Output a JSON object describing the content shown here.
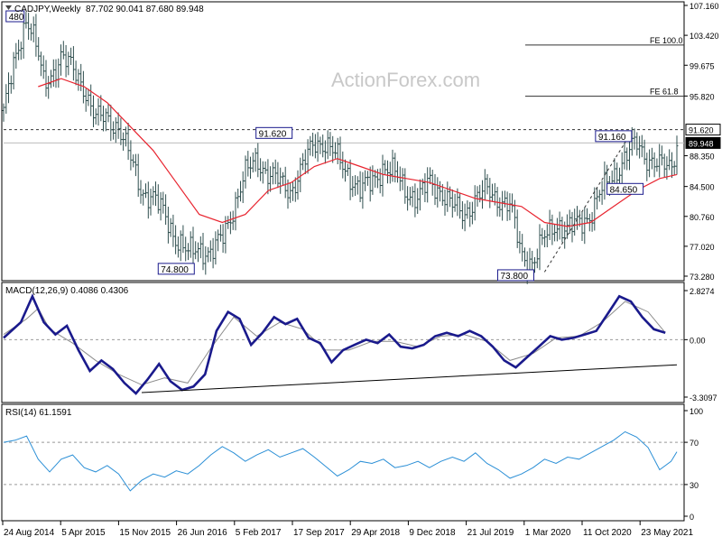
{
  "header": {
    "symbol_label": "CADJPY,Weekly",
    "ohlc_label": "87.702 90.041 87.680 89.948"
  },
  "watermark": "ActionForex.com",
  "colors": {
    "bars": "#2f4f4f",
    "ma": "#e8242f",
    "macd": "#1a1a8c",
    "signal": "#8c8c8c",
    "rsi": "#2b8fd6",
    "grid": "#e6e6e6"
  },
  "chart_data": [
    {
      "type": "candlestick",
      "title": "CADJPY,Weekly",
      "ylim": [
        73.28,
        107.16
      ],
      "y_ticks": [
        "107.160",
        "103.420",
        "99.675",
        "95.820",
        "91.620",
        "89.948",
        "88.350",
        "84.500",
        "80.760",
        "77.020",
        "73.280"
      ],
      "annotations": [
        "480",
        "74.800",
        "91.620",
        "73.800",
        "91.160",
        "84.650"
      ],
      "fib_levels": [
        {
          "label": "FE 100.0",
          "value": 102.2
        },
        {
          "label": "FE 61.8",
          "value": 95.8
        }
      ],
      "highlighted_levels": [
        {
          "label": "91.620",
          "value": 91.62
        },
        {
          "label": "89.948",
          "value": 89.948
        }
      ],
      "series": [
        {
          "points": [
            [
              0,
              94
            ],
            [
              2,
              100
            ],
            [
              4,
              106
            ],
            [
              5,
              104
            ],
            [
              6,
              101
            ],
            [
              7,
              97
            ],
            [
              8,
              98
            ],
            [
              10,
              101
            ],
            [
              12,
              99
            ],
            [
              14,
              97
            ],
            [
              16,
              93
            ],
            [
              18,
              93
            ],
            [
              20,
              92
            ],
            [
              22,
              88
            ],
            [
              24,
              84
            ],
            [
              26,
              83
            ],
            [
              28,
              81
            ],
            [
              30,
              78
            ],
            [
              32,
              76
            ],
            [
              34,
              77
            ],
            [
              36,
              76
            ],
            [
              38,
              78
            ],
            [
              40,
              82
            ],
            [
              42,
              86
            ],
            [
              44,
              88
            ],
            [
              46,
              86
            ],
            [
              48,
              85
            ],
            [
              50,
              84
            ],
            [
              52,
              87
            ],
            [
              54,
              90
            ],
            [
              56,
              90
            ],
            [
              58,
              88
            ],
            [
              60,
              86
            ],
            [
              62,
              84
            ],
            [
              64,
              85
            ],
            [
              66,
              87
            ],
            [
              68,
              86
            ],
            [
              70,
              84
            ],
            [
              72,
              83
            ],
            [
              74,
              85
            ],
            [
              76,
              84
            ],
            [
              78,
              82
            ],
            [
              80,
              81
            ],
            [
              82,
              83
            ],
            [
              84,
              84
            ],
            [
              86,
              83
            ],
            [
              88,
              82
            ],
            [
              90,
              76
            ],
            [
              92,
              75
            ],
            [
              94,
              78
            ],
            [
              96,
              80
            ],
            [
              98,
              79
            ],
            [
              100,
              80
            ],
            [
              102,
              81
            ],
            [
              104,
              84
            ],
            [
              106,
              86
            ],
            [
              108,
              88
            ],
            [
              110,
              90
            ],
            [
              112,
              88
            ],
            [
              114,
              87
            ],
            [
              116,
              87
            ],
            [
              117,
              89.9
            ]
          ]
        },
        {
          "name": "SMA",
          "points": [
            [
              6,
              97
            ],
            [
              10,
              98
            ],
            [
              14,
              97
            ],
            [
              18,
              95
            ],
            [
              22,
              92
            ],
            [
              26,
              89
            ],
            [
              30,
              85
            ],
            [
              34,
              81
            ],
            [
              38,
              80
            ],
            [
              42,
              81
            ],
            [
              46,
              84
            ],
            [
              50,
              85
            ],
            [
              54,
              87
            ],
            [
              58,
              88
            ],
            [
              62,
              87
            ],
            [
              66,
              86
            ],
            [
              70,
              85.5
            ],
            [
              74,
              85
            ],
            [
              78,
              84
            ],
            [
              82,
              83
            ],
            [
              86,
              82.5
            ],
            [
              90,
              82
            ],
            [
              94,
              80
            ],
            [
              98,
              79.5
            ],
            [
              102,
              80
            ],
            [
              106,
              82
            ],
            [
              110,
              84
            ],
            [
              114,
              85.5
            ],
            [
              117,
              86
            ]
          ]
        }
      ]
    },
    {
      "type": "line",
      "title": "MACD(12,26,9) 0.4086 0.4306",
      "ylim": [
        -3.3097,
        2.8274
      ],
      "y_ticks": [
        "2.8274",
        "0.00",
        "-3.3097"
      ],
      "series": [
        {
          "name": "MACD",
          "points": [
            [
              0,
              0.1
            ],
            [
              3,
              1.0
            ],
            [
              5,
              2.5
            ],
            [
              7,
              1.0
            ],
            [
              9,
              0.3
            ],
            [
              11,
              0.8
            ],
            [
              13,
              -0.6
            ],
            [
              15,
              -1.8
            ],
            [
              17,
              -1.2
            ],
            [
              19,
              -1.7
            ],
            [
              21,
              -2.5
            ],
            [
              23,
              -3.1
            ],
            [
              25,
              -2.3
            ],
            [
              27,
              -1.4
            ],
            [
              29,
              -2.4
            ],
            [
              31,
              -2.9
            ],
            [
              33,
              -2.7
            ],
            [
              35,
              -2.0
            ],
            [
              37,
              0.5
            ],
            [
              39,
              1.6
            ],
            [
              41,
              1.2
            ],
            [
              43,
              -0.3
            ],
            [
              45,
              0.4
            ],
            [
              47,
              1.3
            ],
            [
              49,
              0.9
            ],
            [
              51,
              1.2
            ],
            [
              53,
              0.1
            ],
            [
              55,
              -0.2
            ],
            [
              57,
              -1.3
            ],
            [
              59,
              -0.6
            ],
            [
              61,
              -0.3
            ],
            [
              63,
              0.0
            ],
            [
              65,
              -0.2
            ],
            [
              67,
              0.3
            ],
            [
              69,
              -0.4
            ],
            [
              71,
              -0.5
            ],
            [
              73,
              -0.3
            ],
            [
              75,
              0.2
            ],
            [
              77,
              0.4
            ],
            [
              79,
              0.2
            ],
            [
              81,
              0.5
            ],
            [
              83,
              0.2
            ],
            [
              85,
              -0.4
            ],
            [
              87,
              -1.2
            ],
            [
              89,
              -1.6
            ],
            [
              91,
              -1.0
            ],
            [
              93,
              -0.4
            ],
            [
              95,
              0.2
            ],
            [
              97,
              0.0
            ],
            [
              99,
              0.1
            ],
            [
              101,
              0.3
            ],
            [
              103,
              0.5
            ],
            [
              105,
              1.5
            ],
            [
              107,
              2.5
            ],
            [
              109,
              2.2
            ],
            [
              111,
              1.3
            ],
            [
              113,
              0.6
            ],
            [
              115,
              0.4
            ]
          ]
        },
        {
          "name": "Signal",
          "points": [
            [
              0,
              0.3
            ],
            [
              4,
              1.2
            ],
            [
              6,
              1.8
            ],
            [
              8,
              0.6
            ],
            [
              12,
              -0.2
            ],
            [
              16,
              -1.2
            ],
            [
              20,
              -2.0
            ],
            [
              24,
              -2.6
            ],
            [
              28,
              -2.2
            ],
            [
              32,
              -2.5
            ],
            [
              36,
              -0.5
            ],
            [
              40,
              1.3
            ],
            [
              44,
              0.2
            ],
            [
              48,
              1.0
            ],
            [
              52,
              0.6
            ],
            [
              56,
              -0.6
            ],
            [
              60,
              -0.6
            ],
            [
              64,
              -0.1
            ],
            [
              68,
              -0.1
            ],
            [
              72,
              -0.4
            ],
            [
              76,
              0.2
            ],
            [
              80,
              0.3
            ],
            [
              84,
              -0.1
            ],
            [
              88,
              -1.2
            ],
            [
              92,
              -0.8
            ],
            [
              96,
              0.1
            ],
            [
              100,
              0.2
            ],
            [
              104,
              1.0
            ],
            [
              108,
              2.2
            ],
            [
              112,
              1.6
            ],
            [
              115,
              0.4
            ]
          ]
        },
        {
          "name": "Trendline",
          "points": [
            [
              24,
              -3.05
            ],
            [
              117,
              -1.45
            ]
          ]
        }
      ]
    },
    {
      "type": "line",
      "title": "RSI(14) 61.1591",
      "ylim": [
        0,
        100
      ],
      "y_ticks": [
        "100",
        "70",
        "30",
        "0"
      ],
      "series": [
        {
          "name": "RSI",
          "points": [
            [
              0,
              70
            ],
            [
              2,
              72
            ],
            [
              4,
              76
            ],
            [
              6,
              54
            ],
            [
              8,
              42
            ],
            [
              10,
              54
            ],
            [
              12,
              58
            ],
            [
              14,
              46
            ],
            [
              16,
              42
            ],
            [
              18,
              48
            ],
            [
              20,
              40
            ],
            [
              22,
              24
            ],
            [
              24,
              34
            ],
            [
              26,
              40
            ],
            [
              28,
              37
            ],
            [
              30,
              43
            ],
            [
              32,
              40
            ],
            [
              34,
              48
            ],
            [
              36,
              58
            ],
            [
              38,
              66
            ],
            [
              40,
              60
            ],
            [
              42,
              52
            ],
            [
              44,
              58
            ],
            [
              46,
              63
            ],
            [
              48,
              56
            ],
            [
              50,
              60
            ],
            [
              52,
              64
            ],
            [
              54,
              56
            ],
            [
              56,
              47
            ],
            [
              58,
              38
            ],
            [
              60,
              44
            ],
            [
              62,
              52
            ],
            [
              64,
              50
            ],
            [
              66,
              54
            ],
            [
              68,
              46
            ],
            [
              70,
              48
            ],
            [
              72,
              52
            ],
            [
              74,
              46
            ],
            [
              76,
              52
            ],
            [
              78,
              56
            ],
            [
              80,
              52
            ],
            [
              82,
              60
            ],
            [
              84,
              50
            ],
            [
              86,
              44
            ],
            [
              88,
              36
            ],
            [
              90,
              40
            ],
            [
              92,
              46
            ],
            [
              94,
              54
            ],
            [
              96,
              50
            ],
            [
              98,
              56
            ],
            [
              100,
              54
            ],
            [
              102,
              60
            ],
            [
              104,
              66
            ],
            [
              106,
              72
            ],
            [
              108,
              80
            ],
            [
              110,
              75
            ],
            [
              112,
              65
            ],
            [
              114,
              44
            ],
            [
              116,
              52
            ],
            [
              117,
              61
            ]
          ]
        }
      ]
    }
  ],
  "x_axis": {
    "labels": [
      "24 Aug 2014",
      "5 Apr 2015",
      "15 Nov 2015",
      "26 Jun 2016",
      "5 Feb 2017",
      "17 Sep 2017",
      "29 Apr 2018",
      "9 Dec 2018",
      "21 Jul 2019",
      "1 Mar 2020",
      "11 Oct 2020",
      "23 May 2021"
    ]
  }
}
